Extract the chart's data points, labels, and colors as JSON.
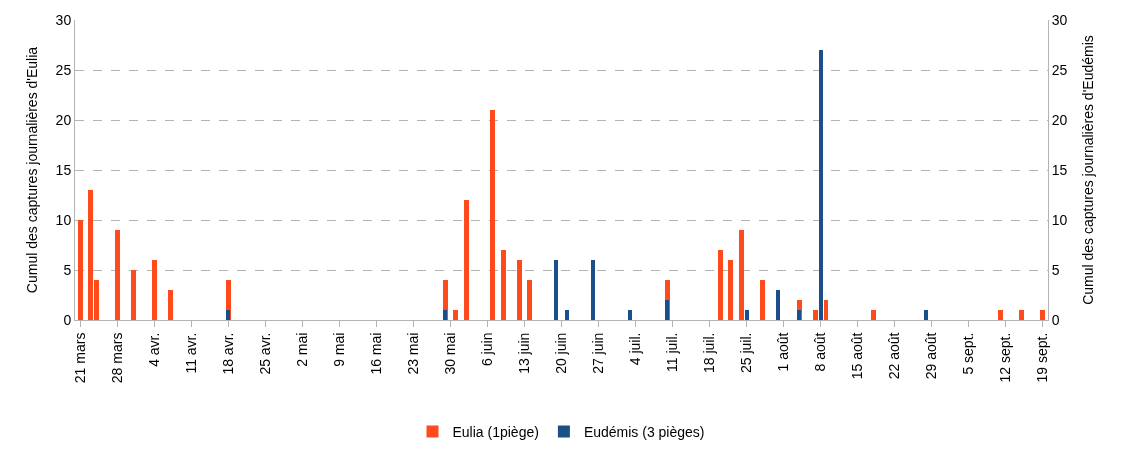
{
  "chart_data": {
    "type": "bar",
    "ylabel": "Cumul des captures journalières d'Eulia",
    "y2label": "Cumul des captures journalières d'Eudémis",
    "series": [
      {
        "name": "Eulia (1piège)",
        "color": "#ff4a1c",
        "x": [
          "--03-21",
          "--03-23",
          "--03-24",
          "--03-28",
          "--03-31",
          "--04-04",
          "--04-07",
          "--04-18",
          "--05-29",
          "--05-31",
          "--06-02",
          "--06-07",
          "--06-09",
          "--06-12",
          "--06-14",
          "--07-10",
          "--07-20",
          "--07-22",
          "--07-24",
          "--07-28",
          "--08-04",
          "--08-07",
          "--08-09",
          "--08-18",
          "--09-11",
          "--09-15",
          "--09-19"
        ],
        "values": [
          10,
          13,
          4,
          9,
          5,
          6,
          3,
          4,
          4,
          1,
          12,
          21,
          7,
          6,
          4,
          4,
          7,
          6,
          9,
          4,
          2,
          1,
          2,
          1,
          1,
          1,
          1
        ]
      },
      {
        "name": "Eudémis (3 pièges)",
        "color": "#1a4f8b",
        "axis": "y2",
        "x": [
          "--04-18",
          "--05-29",
          "--06-19",
          "--06-21",
          "--06-26",
          "--07-03",
          "--07-10",
          "--07-25",
          "--07-31",
          "--08-04",
          "--08-08",
          "--08-28"
        ],
        "values": [
          1,
          1,
          6,
          1,
          6,
          1,
          2,
          1,
          3,
          1,
          27,
          1
        ]
      }
    ],
    "xlim": [
      "--03-20",
      "--09-20"
    ],
    "xticks": [
      {
        "value": "--03-21",
        "label": "21 mars"
      },
      {
        "value": "--03-28",
        "label": "28 mars"
      },
      {
        "value": "--04-04",
        "label": "4 avr."
      },
      {
        "value": "--04-11",
        "label": "11 avr."
      },
      {
        "value": "--04-18",
        "label": "18 avr."
      },
      {
        "value": "--04-25",
        "label": "25 avr."
      },
      {
        "value": "--05-02",
        "label": "2 mai"
      },
      {
        "value": "--05-09",
        "label": "9 mai"
      },
      {
        "value": "--05-16",
        "label": "16 mai"
      },
      {
        "value": "--05-23",
        "label": "23 mai"
      },
      {
        "value": "--05-30",
        "label": "30 mai"
      },
      {
        "value": "--06-06",
        "label": "6 juin"
      },
      {
        "value": "--06-13",
        "label": "13 juin"
      },
      {
        "value": "--06-20",
        "label": "20 juin"
      },
      {
        "value": "--06-27",
        "label": "27 juin"
      },
      {
        "value": "--07-04",
        "label": "4 juil."
      },
      {
        "value": "--07-11",
        "label": "11 juil."
      },
      {
        "value": "--07-18",
        "label": "18 juil."
      },
      {
        "value": "--07-25",
        "label": "25 juil."
      },
      {
        "value": "--08-01",
        "label": "1 août"
      },
      {
        "value": "--08-08",
        "label": "8 août"
      },
      {
        "value": "--08-15",
        "label": "15 août"
      },
      {
        "value": "--08-22",
        "label": "22 août"
      },
      {
        "value": "--08-29",
        "label": "29 août"
      },
      {
        "value": "--09-05",
        "label": "5 sept."
      },
      {
        "value": "--09-12",
        "label": "12 sept."
      },
      {
        "value": "--09-19",
        "label": "19 sept."
      }
    ],
    "ylim": [
      0,
      30
    ],
    "yticks": [
      0,
      5,
      10,
      15,
      20,
      25,
      30
    ],
    "y2lim": [
      0,
      30
    ],
    "y2ticks": [
      0,
      5,
      10,
      15,
      20,
      25,
      30
    ],
    "grid": "y",
    "legend": "bottom"
  }
}
